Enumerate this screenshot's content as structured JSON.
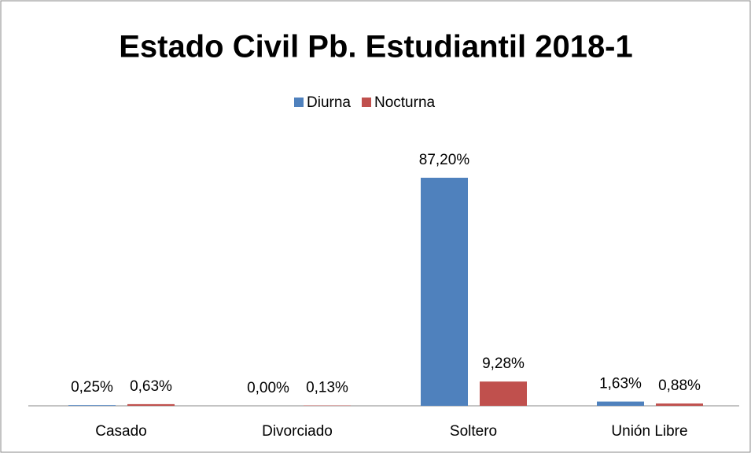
{
  "chart_data": {
    "type": "bar",
    "title": "Estado Civil Pb. Estudiantil 2018-1",
    "categories": [
      "Casado",
      "Divorciado",
      "Soltero",
      "Unión Libre"
    ],
    "series": [
      {
        "name": "Diurna",
        "color": "#4f81bd",
        "values": [
          0.25,
          0.0,
          87.2,
          1.63
        ],
        "value_labels": [
          "0,25%",
          "0,00%",
          "87,20%",
          "1,63%"
        ]
      },
      {
        "name": "Nocturna",
        "color": "#c0504d",
        "values": [
          0.63,
          0.13,
          9.28,
          0.88
        ],
        "value_labels": [
          "0,63%",
          "0,13%",
          "9,28%",
          "0,88%"
        ]
      }
    ],
    "legend": "top"
  }
}
